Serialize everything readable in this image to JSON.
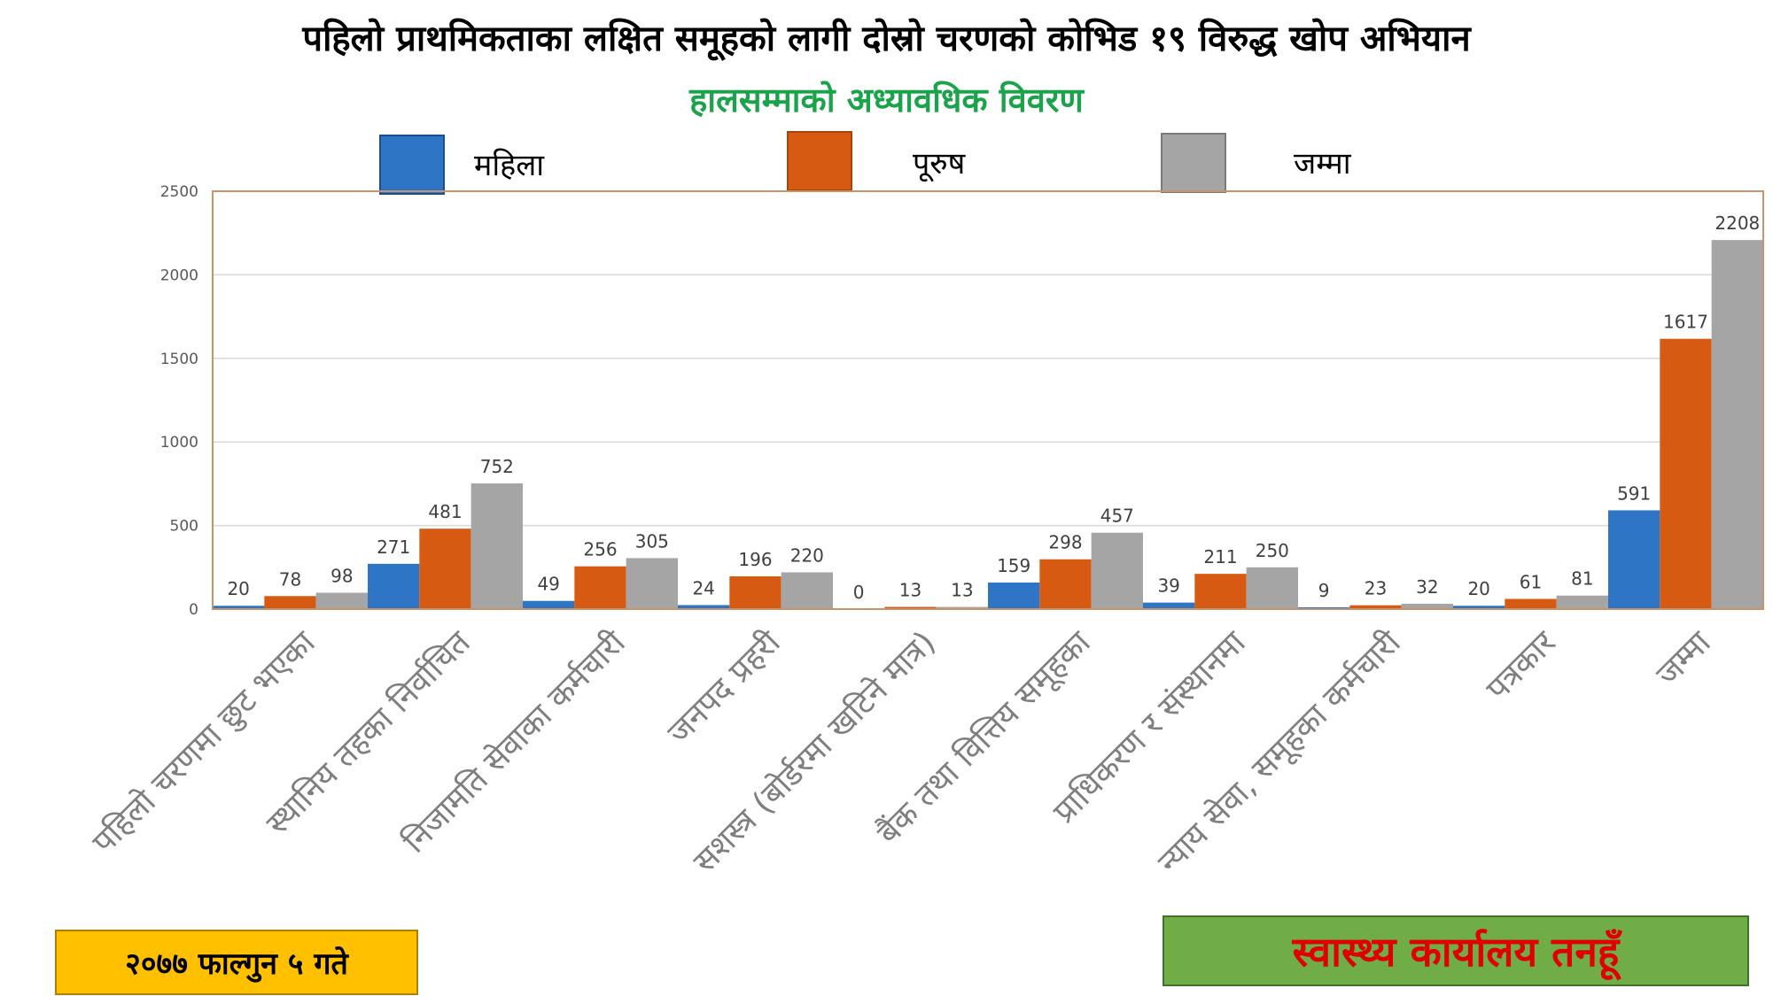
{
  "header": {
    "title": "पहिलो प्राथमिकताका लक्षित समूहको लागी दोस्रो चरणको कोभिड १९ विरुद्ध खोप अभियान",
    "subtitle": "हालसम्माको अध्यावधिक विवरण"
  },
  "footer": {
    "date": "२०७७ फाल्गुन ५ गते",
    "office": "स्वास्थ्य कार्यालय तनहूँ"
  },
  "colors": {
    "female": "#2e75c6",
    "male": "#d65a12",
    "total": "#a5a5a5",
    "frame": "#c8956a",
    "grid": "#d9d9d9",
    "axis_text": "#595959",
    "category_text": "#7f7f7f",
    "title_green": "#1aa34a"
  },
  "chart_data": {
    "type": "bar",
    "title": "",
    "xlabel": "",
    "ylabel": "",
    "ylim": [
      0,
      2500
    ],
    "yticks": [
      0,
      500,
      1000,
      1500,
      2000,
      2500
    ],
    "grid": true,
    "legend_position": "top",
    "categories": [
      "पहिलो चरणमा छुट भएका",
      "स्थानिय तहका निर्वाचित",
      "निजामति सेवाका कर्मचारी",
      "जनपद प्रहरी",
      "सशस्त्र (बोर्डरमा खटिने मात्र)",
      "बैंक तथा वित्तिय समूहका",
      "प्राधिकरण र संस्थानमा",
      "न्याय सेवा, समूहका कर्मचारी",
      "पत्रकार",
      "जम्मा"
    ],
    "series": [
      {
        "name": "महिला",
        "values": [
          20,
          271,
          49,
          24,
          0,
          159,
          39,
          9,
          20,
          591
        ]
      },
      {
        "name": "पूरुष",
        "values": [
          78,
          481,
          256,
          196,
          13,
          298,
          211,
          23,
          61,
          1617
        ]
      },
      {
        "name": "जम्मा",
        "values": [
          98,
          752,
          305,
          220,
          13,
          457,
          250,
          32,
          81,
          2208
        ]
      }
    ]
  }
}
